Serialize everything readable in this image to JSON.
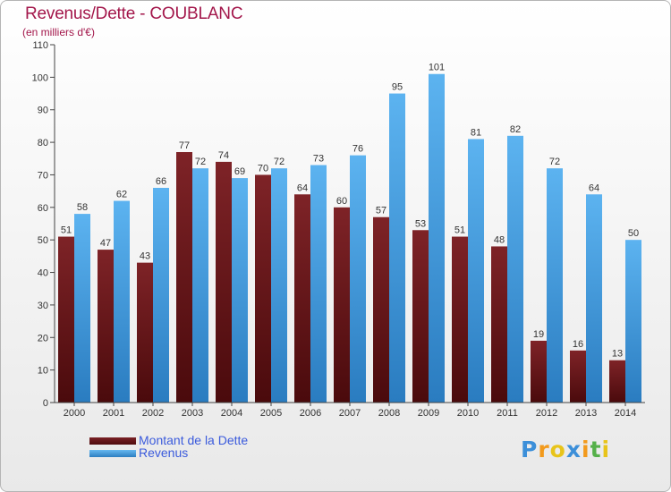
{
  "chart_data": {
    "type": "bar",
    "title": "Revenus/Dette - COUBLANC",
    "subtitle": "(en milliers d'€)",
    "categories": [
      "2000",
      "2001",
      "2002",
      "2003",
      "2004",
      "2005",
      "2006",
      "2007",
      "2008",
      "2009",
      "2010",
      "2011",
      "2012",
      "2013",
      "2014"
    ],
    "series": [
      {
        "name": "Montant de la Dette",
        "color": "#6a1a1e",
        "values": [
          51,
          47,
          43,
          77,
          74,
          70,
          64,
          60,
          57,
          53,
          51,
          48,
          19,
          16,
          13
        ]
      },
      {
        "name": "Revenus",
        "color": "#4aa3e6",
        "values": [
          58,
          62,
          66,
          72,
          69,
          72,
          73,
          76,
          95,
          101,
          81,
          82,
          72,
          64,
          50
        ]
      }
    ],
    "yticks": [
      0,
      10,
      20,
      30,
      40,
      50,
      60,
      70,
      80,
      90,
      100,
      110
    ],
    "ylim": [
      0,
      110
    ],
    "xlabel": "",
    "ylabel": "",
    "grid": false,
    "legend_position": "bottom-left"
  },
  "logo": {
    "text": "Proxiti"
  }
}
